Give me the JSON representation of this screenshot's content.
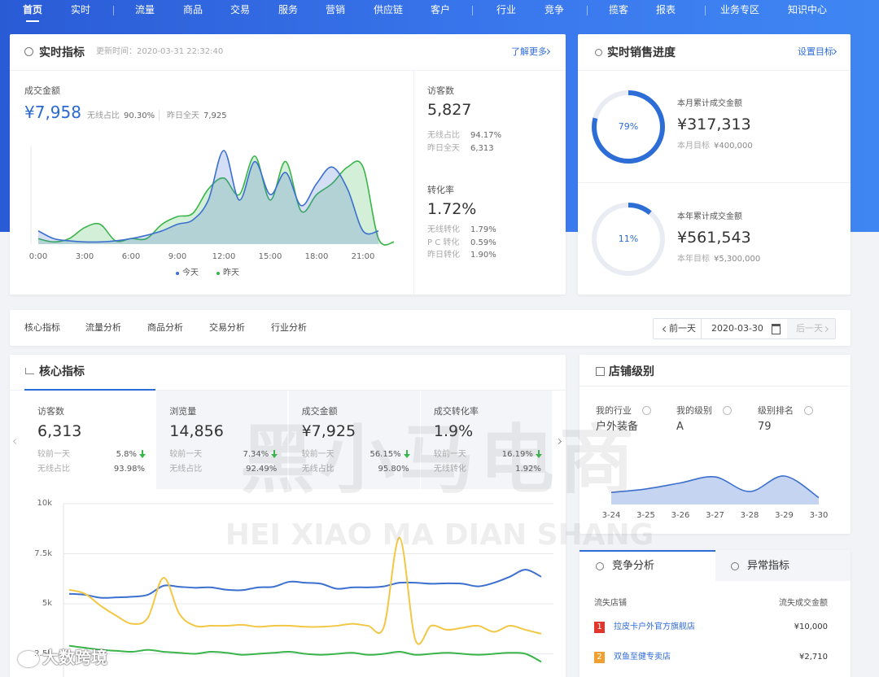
{
  "nav": {
    "items": [
      "首页",
      "实时",
      "流量",
      "商品",
      "交易",
      "服务",
      "营销",
      "供应链",
      "客户",
      "行业",
      "竞争",
      "揽客",
      "报表",
      "业务专区",
      "知识中心"
    ],
    "active": 0
  },
  "realtime": {
    "title": "实时指标",
    "updated": "更新时间：2020-03-31 22:32:40",
    "more": "了解更多",
    "main": {
      "label": "成交金额",
      "value": "¥7,958",
      "wireless_label": "无线占比",
      "wireless": "90.30%",
      "yesterday_label": "昨日全天",
      "yesterday": "7,925"
    },
    "chart": {
      "type": "line",
      "x": [
        0,
        1,
        2,
        3,
        4,
        5,
        6,
        7,
        8,
        9,
        10,
        11,
        12,
        13,
        14,
        15,
        16,
        17,
        18,
        19,
        20,
        21,
        22,
        23
      ],
      "xlim": [
        0,
        23
      ],
      "xticks": [
        {
          "value": 0,
          "label": "0:00"
        },
        {
          "value": 3,
          "label": "3:00"
        },
        {
          "value": 6,
          "label": "6:00"
        },
        {
          "value": 9,
          "label": "9:00"
        },
        {
          "value": 12,
          "label": "12:00"
        },
        {
          "value": 15,
          "label": "15:00"
        },
        {
          "value": 18,
          "label": "18:00"
        },
        {
          "value": 21,
          "label": "21:00"
        }
      ],
      "series": [
        {
          "name": "今天",
          "color": "#3b6fd0",
          "values": [
            12,
            5,
            3,
            2,
            2,
            3,
            5,
            8,
            12,
            18,
            22,
            40,
            85,
            40,
            75,
            45,
            65,
            35,
            55,
            70,
            50,
            12,
            12,
            null
          ]
        },
        {
          "name": "昨天",
          "color": "#3ab54a",
          "values": [
            5,
            2,
            5,
            15,
            18,
            3,
            5,
            5,
            18,
            25,
            28,
            50,
            60,
            45,
            80,
            40,
            75,
            30,
            45,
            55,
            70,
            70,
            5,
            2
          ]
        }
      ]
    },
    "visitors": {
      "label": "访客数",
      "value": "5,827",
      "rows": [
        [
          "无线占比",
          "94.17%"
        ],
        [
          "昨日全天",
          "6,313"
        ]
      ]
    },
    "conversion": {
      "label": "转化率",
      "value": "1.72%",
      "rows": [
        [
          "无线转化",
          "1.79%"
        ],
        [
          "P C 转化",
          "0.59%"
        ],
        [
          "昨日转化",
          "1.90%"
        ]
      ]
    }
  },
  "sales": {
    "title": "实时销售进度",
    "action": "设置目标",
    "goals": [
      {
        "progress": {
          "value": 79,
          "label": "79%"
        },
        "label": "本月累计成交金额",
        "value": "¥317,313",
        "target_label": "本月目标",
        "target": "¥400,000"
      },
      {
        "progress": {
          "value": 11,
          "label": "11%"
        },
        "label": "本年累计成交金额",
        "value": "¥561,543",
        "target_label": "本年目标",
        "target": "¥5,300,000"
      }
    ]
  },
  "tabs": {
    "items": [
      "核心指标",
      "流量分析",
      "商品分析",
      "交易分析",
      "行业分析"
    ],
    "prev": "前一天",
    "date": "2020-03-30",
    "next": "后一天"
  },
  "core": {
    "title": "核心指标",
    "cards": [
      {
        "label": "访客数",
        "value": "6,313",
        "change_label": "较前一天",
        "change": "5.8%",
        "sub_label": "无线占比",
        "sub": "93.98%"
      },
      {
        "label": "浏览量",
        "value": "14,856",
        "change_label": "较前一天",
        "change": "7.34%",
        "sub_label": "无线占比",
        "sub": "92.49%"
      },
      {
        "label": "成交金额",
        "value": "¥7,925",
        "change_label": "较前一天",
        "change": "56.15%",
        "sub_label": "无线占比",
        "sub": "95.80%"
      },
      {
        "label": "成交转化率",
        "value": "1.9%",
        "change_label": "较前一天",
        "change": "16.19%",
        "sub_label": "无线转化",
        "sub": "1.92%"
      }
    ],
    "chart": {
      "type": "line",
      "ylim": [
        0,
        10000
      ],
      "grid": true,
      "yticks": [
        {
          "value": 2500,
          "label": "2.5k"
        },
        {
          "value": 5000,
          "label": "5k"
        },
        {
          "value": 7500,
          "label": "7.5k"
        },
        {
          "value": 10000,
          "label": "10k"
        }
      ],
      "series": [
        {
          "color": "#3b6fd0",
          "values": [
            5500,
            5450,
            5300,
            5320,
            5350,
            5450,
            5900,
            5850,
            5800,
            5820,
            5700,
            5680,
            5820,
            5850,
            6100,
            6050,
            6000,
            5750,
            5820,
            5820,
            5870,
            6050,
            6050,
            6000,
            6020,
            6000,
            5870,
            6050,
            6350,
            6700,
            6350
          ]
        },
        {
          "color": "#f2c744",
          "values": [
            5700,
            5500,
            4900,
            4400,
            4000,
            4300,
            6300,
            4500,
            3900,
            3900,
            3900,
            3950,
            3850,
            3900,
            3900,
            3850,
            3850,
            3900,
            4000,
            3900,
            3850,
            8300,
            3200,
            3900,
            3700,
            3800,
            3900,
            3600,
            3900,
            3700,
            3500
          ]
        },
        {
          "color": "#3ab54a",
          "values": [
            2900,
            2800,
            2700,
            2650,
            2600,
            2700,
            2600,
            2550,
            2500,
            2600,
            2550,
            2450,
            2500,
            2550,
            2600,
            2500,
            2450,
            2500,
            2550,
            2450,
            2500,
            2600,
            2450,
            2500,
            2550,
            2500,
            2450,
            2500,
            2550,
            2500,
            2100
          ]
        }
      ]
    }
  },
  "shop": {
    "title": "店铺级别",
    "fields": [
      {
        "label": "我的行业",
        "value": "户外装备"
      },
      {
        "label": "我的级别",
        "value": "A"
      },
      {
        "label": "级别排名",
        "value": "79"
      }
    ],
    "chart": {
      "type": "area",
      "categories": [
        "3-24",
        "3-25",
        "3-26",
        "3-27",
        "3-28",
        "3-29",
        "3-30"
      ],
      "series": [
        {
          "color": "#3b6fd0",
          "values": [
            14,
            18,
            25,
            32,
            15,
            33,
            8
          ]
        }
      ]
    }
  },
  "competition": {
    "tabs": [
      "竞争分析",
      "异常指标"
    ],
    "columns": [
      "流失店铺",
      "流失成交金额"
    ],
    "rows": [
      {
        "rank": "1",
        "color": "#e0362c",
        "shop": "拉皮卡户外官方旗舰店",
        "amount": "¥10,000"
      },
      {
        "rank": "2",
        "color": "#f0a030",
        "shop": "双鱼至健专卖店",
        "amount": "¥2,710"
      }
    ]
  },
  "watermark": {
    "brand": "黑小马电商",
    "pinyin": "HEI XIAO MA DIAN SHANG",
    "source": "大数跨境"
  }
}
